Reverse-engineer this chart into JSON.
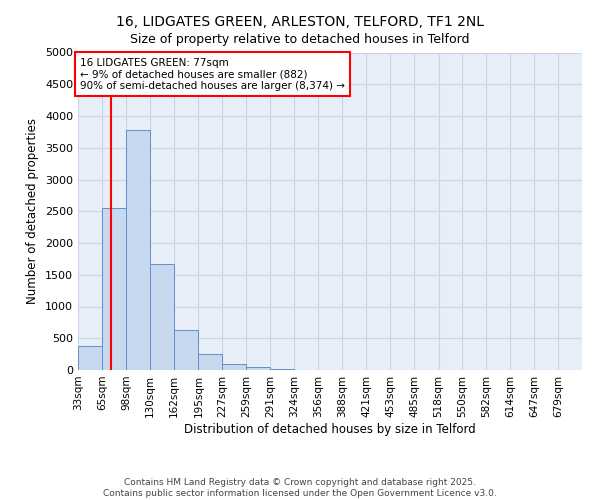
{
  "title_line1": "16, LIDGATES GREEN, ARLESTON, TELFORD, TF1 2NL",
  "title_line2": "Size of property relative to detached houses in Telford",
  "xlabel": "Distribution of detached houses by size in Telford",
  "ylabel": "Number of detached properties",
  "bin_edges": [
    33,
    65,
    98,
    130,
    162,
    195,
    227,
    259,
    291,
    324,
    356,
    388,
    421,
    453,
    485,
    518,
    550,
    582,
    614,
    647,
    679
  ],
  "bar_heights": [
    375,
    2550,
    3780,
    1670,
    625,
    245,
    100,
    50,
    10,
    5,
    0,
    0,
    0,
    0,
    0,
    0,
    0,
    0,
    0,
    0
  ],
  "bar_color": "#c8d8ef",
  "bar_edge_color": "#6090c8",
  "grid_color": "#c8d4e8",
  "background_color": "#e8eef8",
  "red_line_x": 77,
  "annotation_text": "16 LIDGATES GREEN: 77sqm\n← 9% of detached houses are smaller (882)\n90% of semi-detached houses are larger (8,374) →",
  "annotation_box_color": "white",
  "annotation_border_color": "red",
  "ylim": [
    0,
    5000
  ],
  "yticks": [
    0,
    500,
    1000,
    1500,
    2000,
    2500,
    3000,
    3500,
    4000,
    4500,
    5000
  ],
  "footer_line1": "Contains HM Land Registry data © Crown copyright and database right 2025.",
  "footer_line2": "Contains public sector information licensed under the Open Government Licence v3.0."
}
